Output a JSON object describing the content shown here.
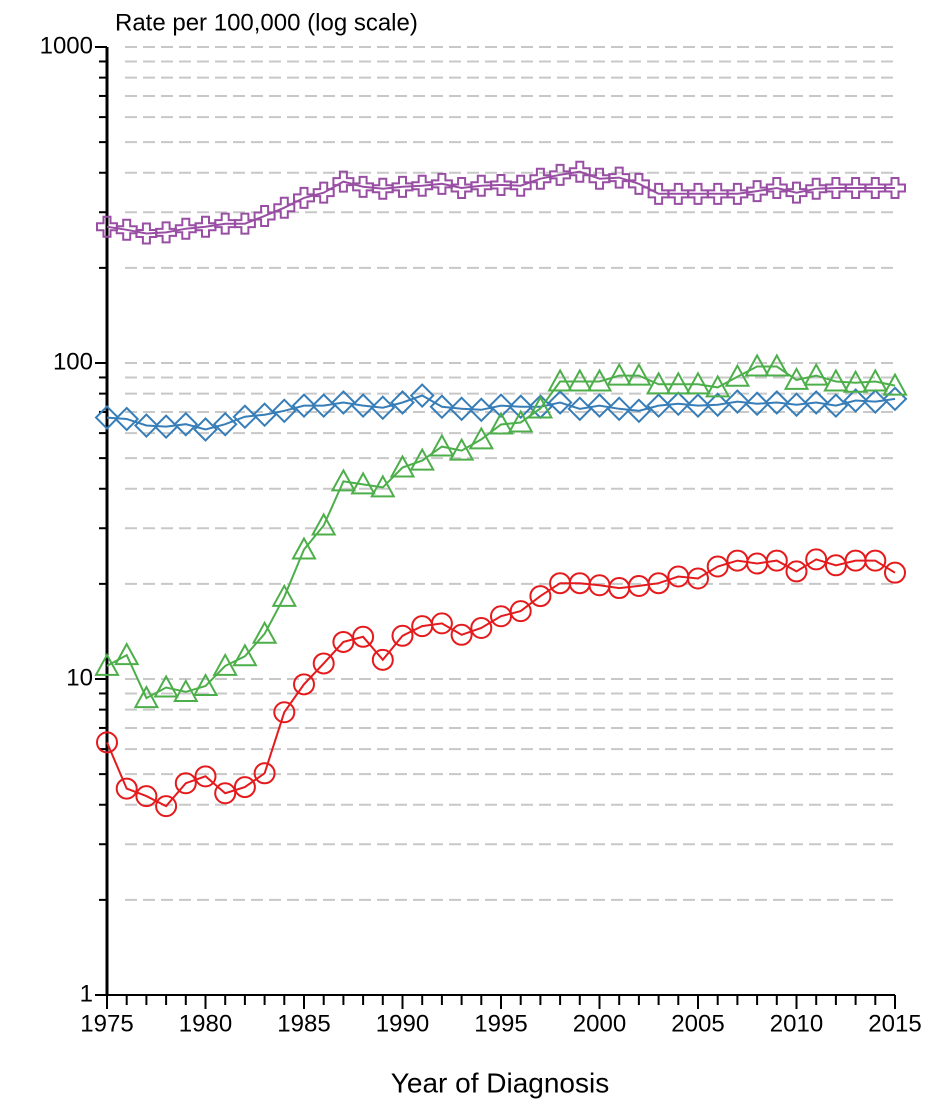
{
  "chart_data": {
    "type": "line",
    "title": "Rate per 100,000 (log scale)",
    "x_label": "Year of Diagnosis",
    "log_y": true,
    "grid": true,
    "xlim": [
      1975,
      2015
    ],
    "xticks": [
      1975,
      1980,
      1985,
      1990,
      1995,
      2000,
      2005,
      2010,
      2015
    ],
    "ylim": [
      1,
      1000
    ],
    "yticks": [
      1,
      10,
      100,
      1000
    ],
    "yminorticks": [
      2,
      3,
      4,
      5,
      6,
      7,
      8,
      9,
      20,
      30,
      40,
      50,
      60,
      70,
      80,
      90,
      200,
      300,
      400,
      500,
      600,
      700,
      800,
      900
    ],
    "x": [
      1975,
      1976,
      1977,
      1978,
      1979,
      1980,
      1981,
      1982,
      1983,
      1984,
      1985,
      1986,
      1987,
      1988,
      1989,
      1990,
      1991,
      1992,
      1993,
      1994,
      1995,
      1996,
      1997,
      1998,
      1999,
      2000,
      2001,
      2002,
      2003,
      2004,
      2005,
      2006,
      2007,
      2008,
      2009,
      2010,
      2011,
      2012,
      2013,
      2014,
      2015
    ],
    "series": [
      {
        "color": "#984ea3",
        "marker": "plus",
        "values": [
          270,
          264,
          257,
          259,
          266,
          270,
          276,
          276,
          292,
          310,
          333,
          346,
          375,
          361,
          356,
          361,
          364,
          369,
          358,
          364,
          366,
          364,
          383,
          394,
          403,
          383,
          386,
          369,
          343,
          343,
          343,
          343,
          343,
          350,
          358,
          346,
          356,
          358,
          358,
          358,
          358
        ]
      },
      {
        "color": "#377eb8",
        "marker": "diamond",
        "values": [
          67.2,
          66.5,
          63.4,
          62.9,
          64,
          61.6,
          64,
          67.6,
          68.6,
          70.6,
          73.3,
          73.3,
          75,
          73.3,
          72.2,
          75,
          78.9,
          72.7,
          71.6,
          71.1,
          73.3,
          72.7,
          72.7,
          75,
          71.6,
          73.3,
          71.6,
          70.6,
          73.3,
          74.3,
          73.3,
          73.8,
          75.5,
          74.3,
          75,
          73.8,
          75,
          73.3,
          76.1,
          75.5,
          77
        ]
      },
      {
        "color": "#4daf4a",
        "marker": "triangle",
        "values": [
          11,
          11.9,
          8.7,
          9.4,
          9.1,
          9.5,
          11,
          11.8,
          13.9,
          18.2,
          25.7,
          30.6,
          42.2,
          41.3,
          40.4,
          46.7,
          49.1,
          54.4,
          52.8,
          57.3,
          63.9,
          64.8,
          71.8,
          87.4,
          87.4,
          87.4,
          91.2,
          91.2,
          85.6,
          85.6,
          85.6,
          83.7,
          90.5,
          97.5,
          97.5,
          88.4,
          91.2,
          87.4,
          86.6,
          87.4,
          84.8
        ]
      },
      {
        "color": "#e41a1c",
        "marker": "circle",
        "values": [
          6.3,
          4.5,
          4.26,
          3.96,
          4.68,
          4.92,
          4.35,
          4.55,
          5.03,
          7.85,
          9.62,
          11.2,
          13.1,
          13.6,
          11.5,
          13.7,
          14.7,
          15,
          13.8,
          14.5,
          15.8,
          16.4,
          18.3,
          20.1,
          20.1,
          19.8,
          19.4,
          19.7,
          20.1,
          21.1,
          20.8,
          22.7,
          23.7,
          23.2,
          23.7,
          21.9,
          23.9,
          22.9,
          23.7,
          23.7,
          21.7
        ]
      }
    ]
  }
}
